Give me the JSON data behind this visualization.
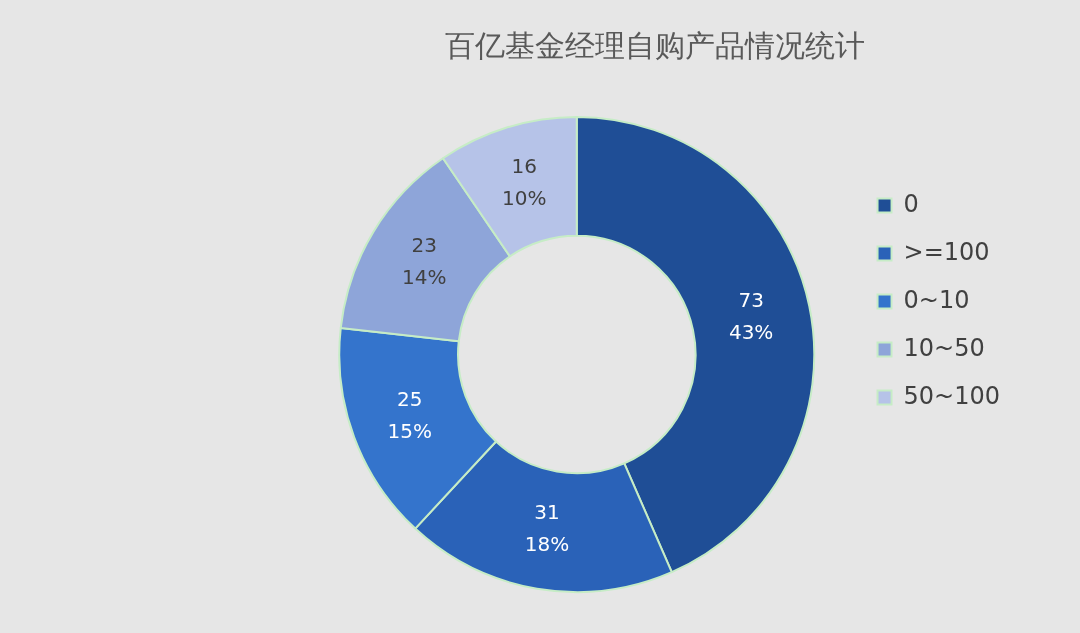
{
  "chart_data": {
    "type": "donut",
    "title": "百亿基金经理自购产品情况统计",
    "categories": [
      "0",
      ">=100",
      "0~10",
      "10~50",
      "50~100"
    ],
    "values": [
      73,
      31,
      25,
      23,
      16
    ],
    "colors": [
      "#1f4e96",
      "#2a62b8",
      "#3474cc",
      "#8ea5d9",
      "#b6c3e8"
    ],
    "value_labels": [
      "73\n43%",
      "31\n18%",
      "25\n15%",
      "23\n14%",
      "16\n10%"
    ],
    "legend": "right"
  }
}
